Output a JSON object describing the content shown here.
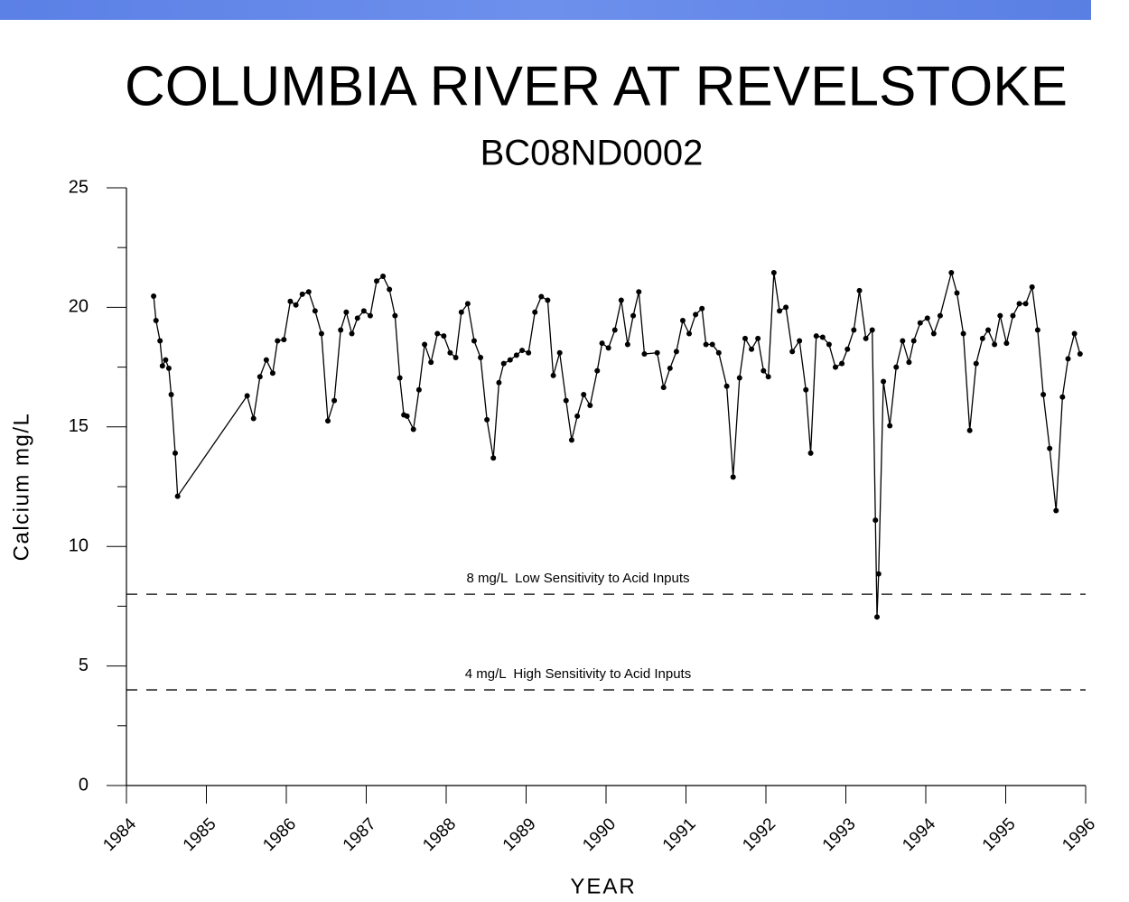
{
  "chart_data": {
    "type": "line",
    "title": "COLUMBIA RIVER AT REVELSTOKE",
    "subtitle": "BC08ND0002",
    "x_label": "YEAR",
    "y_label": "Calcium mg/L",
    "xlim": [
      1984,
      1996
    ],
    "xticks": [
      1984,
      1985,
      1986,
      1987,
      1988,
      1989,
      1990,
      1991,
      1992,
      1993,
      1994,
      1995,
      1996
    ],
    "ylim": [
      0,
      25
    ],
    "yticks": [
      0,
      5,
      10,
      15,
      20,
      25
    ],
    "y_minor_ticks": [
      2.5,
      7.5,
      12.5,
      17.5,
      22.5
    ],
    "color": "#000000",
    "markers": true,
    "x": [
      1984.34,
      1984.37,
      1984.42,
      1984.45,
      1984.49,
      1984.53,
      1984.56,
      1984.61,
      1984.64,
      1985.51,
      1985.59,
      1985.67,
      1985.75,
      1985.83,
      1985.89,
      1985.97,
      1986.05,
      1986.12,
      1986.2,
      1986.28,
      1986.36,
      1986.44,
      1986.52,
      1986.6,
      1986.68,
      1986.75,
      1986.82,
      1986.89,
      1986.97,
      1987.05,
      1987.13,
      1987.21,
      1987.29,
      1987.36,
      1987.42,
      1987.47,
      1987.51,
      1987.59,
      1987.66,
      1987.73,
      1987.81,
      1987.89,
      1987.97,
      1988.05,
      1988.12,
      1988.19,
      1988.27,
      1988.35,
      1988.43,
      1988.51,
      1988.59,
      1988.66,
      1988.72,
      1988.8,
      1988.88,
      1988.95,
      1989.03,
      1989.11,
      1989.19,
      1989.27,
      1989.34,
      1989.42,
      1989.5,
      1989.57,
      1989.64,
      1989.72,
      1989.8,
      1989.89,
      1989.95,
      1990.03,
      1990.11,
      1990.19,
      1990.27,
      1990.34,
      1990.41,
      1990.48,
      1990.64,
      1990.72,
      1990.8,
      1990.88,
      1990.96,
      1991.04,
      1991.12,
      1991.2,
      1991.25,
      1991.33,
      1991.41,
      1991.51,
      1991.59,
      1991.67,
      1991.74,
      1991.82,
      1991.9,
      1991.97,
      1992.03,
      1992.1,
      1992.17,
      1992.25,
      1992.33,
      1992.42,
      1992.5,
      1992.56,
      1992.63,
      1992.71,
      1992.79,
      1992.87,
      1992.95,
      1993.02,
      1993.1,
      1993.17,
      1993.25,
      1993.33,
      1993.37,
      1993.39,
      1993.41,
      1993.47,
      1993.55,
      1993.63,
      1993.71,
      1993.79,
      1993.85,
      1993.93,
      1994.02,
      1994.1,
      1994.18,
      1994.32,
      1994.39,
      1994.47,
      1994.55,
      1994.63,
      1994.71,
      1994.78,
      1994.86,
      1994.93,
      1995.01,
      1995.09,
      1995.17,
      1995.25,
      1995.33,
      1995.4,
      1995.47,
      1995.55,
      1995.63,
      1995.71,
      1995.78,
      1995.86,
      1995.93
    ],
    "values": [
      20.47,
      19.45,
      18.6,
      17.55,
      17.8,
      17.45,
      16.35,
      13.9,
      12.1,
      16.3,
      15.35,
      17.1,
      17.8,
      17.25,
      18.6,
      18.65,
      20.25,
      20.1,
      20.55,
      20.65,
      19.85,
      18.9,
      15.25,
      16.1,
      19.05,
      19.8,
      18.9,
      19.55,
      19.85,
      19.65,
      21.1,
      21.3,
      20.75,
      19.65,
      17.05,
      15.5,
      15.45,
      14.9,
      16.55,
      18.45,
      17.7,
      18.9,
      18.8,
      18.1,
      17.9,
      19.8,
      20.15,
      18.6,
      17.9,
      15.3,
      13.7,
      16.85,
      17.65,
      17.8,
      18.0,
      18.2,
      18.1,
      19.8,
      20.45,
      20.3,
      17.15,
      18.1,
      16.1,
      14.45,
      15.45,
      16.35,
      15.9,
      17.35,
      18.5,
      18.3,
      19.05,
      20.3,
      18.45,
      19.65,
      20.65,
      18.05,
      18.1,
      16.65,
      17.45,
      18.15,
      19.45,
      18.9,
      19.7,
      19.95,
      18.45,
      18.45,
      18.1,
      16.7,
      12.9,
      17.05,
      18.7,
      18.25,
      18.7,
      17.35,
      17.1,
      21.45,
      19.85,
      20.0,
      18.15,
      18.6,
      16.55,
      13.9,
      18.8,
      18.75,
      18.45,
      17.5,
      17.65,
      18.25,
      19.05,
      20.7,
      18.7,
      19.05,
      11.1,
      7.05,
      8.85,
      16.9,
      15.05,
      17.5,
      18.6,
      17.7,
      18.6,
      19.35,
      19.55,
      18.9,
      19.65,
      21.45,
      20.6,
      18.9,
      14.85,
      17.65,
      18.7,
      19.05,
      18.45,
      19.65,
      18.5,
      19.65,
      20.15,
      20.15,
      20.85,
      19.05,
      16.35,
      14.1,
      11.5,
      16.25,
      17.85,
      18.9,
      18.05
    ],
    "reference_lines": [
      {
        "value": 8,
        "label": "8 mg/L  Low Sensitivity to Acid Inputs"
      },
      {
        "value": 4,
        "label": "4 mg/L  High Sensitivity to Acid Inputs"
      }
    ]
  }
}
